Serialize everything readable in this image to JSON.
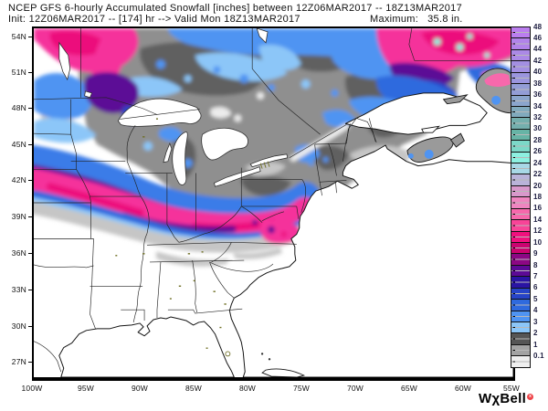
{
  "header": {
    "line1": "NCEP GFS 6-hourly Accumulated Snowfall [inches] between 12Z06MAR2017 -- 18Z13MAR2017",
    "line2": "Init: 12Z06MAR2017 -- [174] hr --> Valid Mon 18Z13MAR2017",
    "maximum_label": "Maximum:",
    "maximum_value": "35.8 in."
  },
  "axes": {
    "lat": [
      "54N",
      "51N",
      "48N",
      "45N",
      "42N",
      "39N",
      "36N",
      "33N",
      "30N",
      "27N"
    ],
    "lon": [
      "100W",
      "95W",
      "90W",
      "85W",
      "80W",
      "75W",
      "70W",
      "65W",
      "60W",
      "55W"
    ]
  },
  "colorbar": {
    "units": "inches",
    "cells": [
      {
        "label": "48",
        "color": "#bb7eef"
      },
      {
        "label": "46",
        "color": "#b283ea"
      },
      {
        "label": "44",
        "color": "#ab89e6"
      },
      {
        "label": "42",
        "color": "#a38fe2"
      },
      {
        "label": "40",
        "color": "#9b95de"
      },
      {
        "label": "38",
        "color": "#939dd6"
      },
      {
        "label": "36",
        "color": "#8ba5cc"
      },
      {
        "label": "34",
        "color": "#81aabd"
      },
      {
        "label": "32",
        "color": "#74afad"
      },
      {
        "label": "30",
        "color": "#67b4a6"
      },
      {
        "label": "28",
        "color": "#7cd8c8"
      },
      {
        "label": "26",
        "color": "#8df0e0"
      },
      {
        "label": "24",
        "color": "#a8d8e6"
      },
      {
        "label": "22",
        "color": "#b9b3d9"
      },
      {
        "label": "20",
        "color": "#d898cb"
      },
      {
        "label": "18",
        "color": "#ef85c0"
      },
      {
        "label": "16",
        "color": "#f768ac"
      },
      {
        "label": "14",
        "color": "#f84498"
      },
      {
        "label": "12",
        "color": "#f0107e"
      },
      {
        "label": "10",
        "color": "#cb0370"
      },
      {
        "label": "9",
        "color": "#8c0784"
      },
      {
        "label": "8",
        "color": "#5c0a96"
      },
      {
        "label": "7",
        "color": "#2a14a4"
      },
      {
        "label": "6",
        "color": "#2644c8"
      },
      {
        "label": "5",
        "color": "#2f6ade"
      },
      {
        "label": "4",
        "color": "#4f94f2"
      },
      {
        "label": "3",
        "color": "#8cc6f8"
      },
      {
        "label": "2",
        "color": "#555555"
      },
      {
        "label": "1",
        "color": "#a3a3a3"
      },
      {
        "label": "0.1",
        "color": "#efefef"
      }
    ]
  },
  "map": {
    "palette": {
      "land": "#ffffff",
      "gray_light": "#c6c6c6",
      "gray_mid": "#8f8f8f",
      "gray_dark": "#606060",
      "blue_light": "#8cc6f8",
      "blue": "#4f94f2",
      "blue_deep": "#2f6ade",
      "navy": "#2644c8",
      "indigo": "#2a14a4",
      "purple": "#5c0a96",
      "magenta_deep": "#cb0370",
      "crimson": "#ec0d7c",
      "pink": "#f5319b",
      "pink_light": "#f768ac",
      "cyan": "#8df0e0",
      "frame": "#000000",
      "coastline": "#141414",
      "state_border": "#222222",
      "small_lake_olive": "#6e6e23"
    }
  },
  "logo": {
    "text": "WχBell",
    "mark": "x",
    "mark_color": "#ee4448"
  }
}
